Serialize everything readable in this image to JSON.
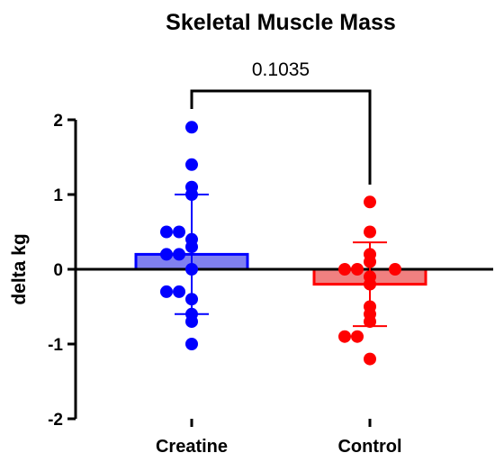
{
  "chart_data": {
    "type": "bar",
    "title": "Skeletal Muscle Mass",
    "ylabel": "delta kg",
    "xlabel": "",
    "ylim": [
      -2,
      2
    ],
    "yticks": [
      {
        "value": 2,
        "label": "2"
      },
      {
        "value": 1,
        "label": "1"
      },
      {
        "value": 0,
        "label": "0"
      },
      {
        "value": -1,
        "label": "-1"
      },
      {
        "value": -2,
        "label": "-2"
      }
    ],
    "categories": [
      "Creatine",
      "Control"
    ],
    "series": [
      {
        "category": "Creatine",
        "color": "#0000ff",
        "bar_fill": "#8080f0",
        "mean": 0.2,
        "sd": 0.8,
        "points": [
          1.9,
          1.4,
          1.1,
          1.0,
          0.5,
          0.5,
          0.4,
          0.3,
          0.2,
          0.2,
          0.0,
          -0.3,
          -0.3,
          -0.4,
          -0.6,
          -0.7,
          -1.0
        ]
      },
      {
        "category": "Control",
        "color": "#ff0000",
        "bar_fill": "#f08080",
        "mean": -0.2,
        "sd": 0.56,
        "points": [
          0.9,
          0.5,
          0.2,
          0.1,
          0.0,
          0.0,
          0.0,
          -0.1,
          -0.2,
          -0.5,
          -0.6,
          -0.7,
          -0.9,
          -0.9,
          -1.2
        ]
      }
    ],
    "annotation": {
      "text": "0.1035",
      "type": "significance-bracket",
      "between": [
        "Creatine",
        "Control"
      ]
    },
    "grid": false,
    "legend": "none"
  }
}
